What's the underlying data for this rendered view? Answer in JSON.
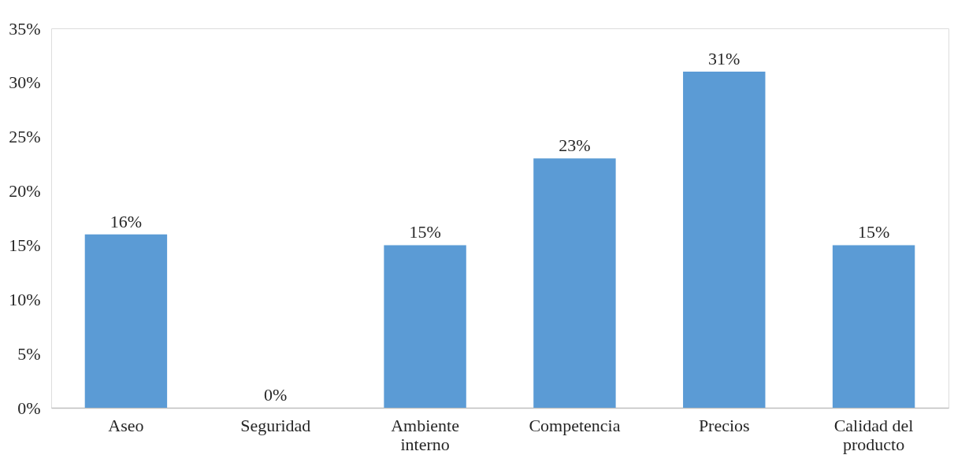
{
  "chart_data": {
    "type": "bar",
    "categories": [
      "Aseo",
      "Seguridad",
      "Ambiente interno",
      "Competencia",
      "Precios",
      "Calidad del producto"
    ],
    "values": [
      16,
      0,
      15,
      23,
      31,
      15
    ],
    "value_labels": [
      "16%",
      "0%",
      "15%",
      "23%",
      "31%",
      "15%"
    ],
    "color": "#5b9bd5",
    "ylim": [
      0,
      35
    ],
    "yticks": [
      {
        "value": 0,
        "label": "0%"
      },
      {
        "value": 5,
        "label": "5%"
      },
      {
        "value": 10,
        "label": "10%"
      },
      {
        "value": 15,
        "label": "15%"
      },
      {
        "value": 20,
        "label": "20%"
      },
      {
        "value": 25,
        "label": "25%"
      },
      {
        "value": 30,
        "label": "30%"
      },
      {
        "value": 35,
        "label": "35%"
      }
    ],
    "grid": false
  }
}
